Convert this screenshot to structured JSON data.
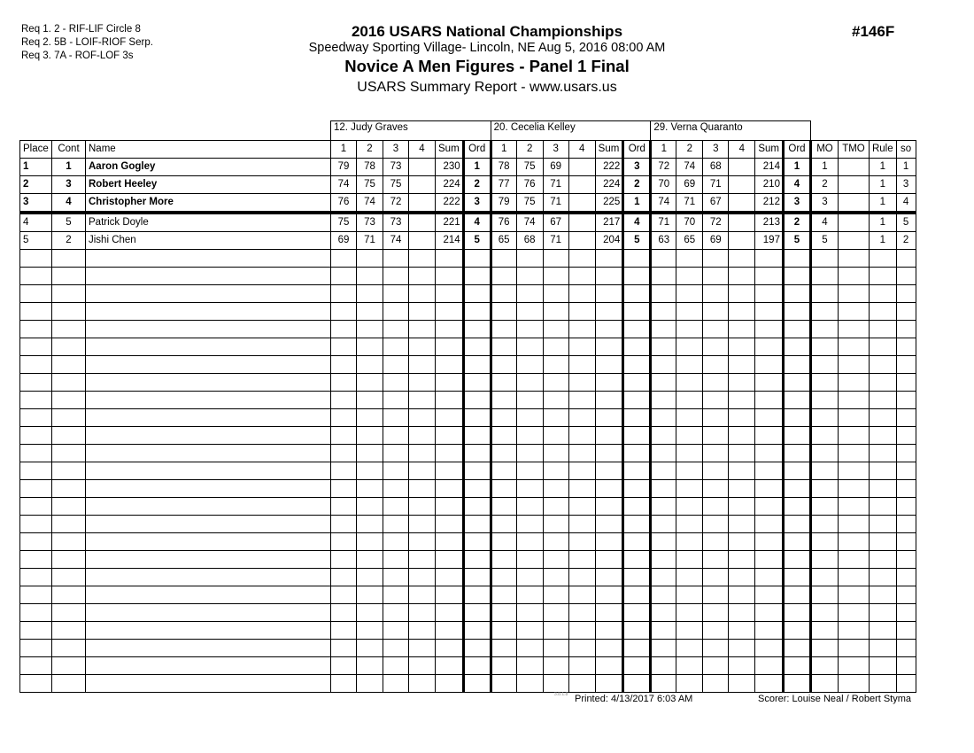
{
  "requirements": [
    "Req  1.  2 - RIF-LIF Circle 8",
    "Req  2.  5B - LOIF-RIOF Serp.",
    "Req  3.  7A - ROF-LOF 3s"
  ],
  "header": {
    "title": "2016 USARS National Championships",
    "venue": "Speedway Sporting Village- Lincoln, NE  Aug 5, 2016  08:00 AM",
    "event": "Novice A Men Figures - Panel 1 Final",
    "report": "USARS Summary Report - www.usars.us",
    "event_number": "#146F"
  },
  "judges": [
    "12.  Judy Graves",
    "20.  Cecelia Kelley",
    "29.  Verna Quaranto"
  ],
  "columns": {
    "place": "Place",
    "cont": "Cont",
    "name": "Name",
    "marks": [
      "1",
      "2",
      "3",
      "4"
    ],
    "sum": "Sum",
    "ord": "Ord",
    "mo": "MO",
    "tmo": "TMO",
    "rule": "Rule",
    "so": "so"
  },
  "rows": [
    {
      "place": "1",
      "cont": "1",
      "name": "Aaron Gogley",
      "bold": true,
      "j": [
        {
          "m": [
            "79",
            "78",
            "73",
            ""
          ],
          "sum": "230",
          "ord": "1"
        },
        {
          "m": [
            "78",
            "75",
            "69",
            ""
          ],
          "sum": "222",
          "ord": "3"
        },
        {
          "m": [
            "72",
            "74",
            "68",
            ""
          ],
          "sum": "214",
          "ord": "1"
        }
      ],
      "mo": "1",
      "tmo": "",
      "rule": "1",
      "so": "1"
    },
    {
      "place": "2",
      "cont": "3",
      "name": "Robert Heeley",
      "bold": true,
      "j": [
        {
          "m": [
            "74",
            "75",
            "75",
            ""
          ],
          "sum": "224",
          "ord": "2"
        },
        {
          "m": [
            "77",
            "76",
            "71",
            ""
          ],
          "sum": "224",
          "ord": "2"
        },
        {
          "m": [
            "70",
            "69",
            "71",
            ""
          ],
          "sum": "210",
          "ord": "4"
        }
      ],
      "mo": "2",
      "tmo": "",
      "rule": "1",
      "so": "3"
    },
    {
      "place": "3",
      "cont": "4",
      "name": "Christopher More",
      "bold": true,
      "j": [
        {
          "m": [
            "76",
            "74",
            "72",
            ""
          ],
          "sum": "222",
          "ord": "3"
        },
        {
          "m": [
            "79",
            "75",
            "71",
            ""
          ],
          "sum": "225",
          "ord": "1"
        },
        {
          "m": [
            "74",
            "71",
            "67",
            ""
          ],
          "sum": "212",
          "ord": "3"
        }
      ],
      "mo": "3",
      "tmo": "",
      "rule": "1",
      "so": "4"
    },
    {
      "place": "4",
      "cont": "5",
      "name": "Patrick Doyle",
      "bold": false,
      "j": [
        {
          "m": [
            "75",
            "73",
            "73",
            ""
          ],
          "sum": "221",
          "ord": "4"
        },
        {
          "m": [
            "76",
            "74",
            "67",
            ""
          ],
          "sum": "217",
          "ord": "4"
        },
        {
          "m": [
            "71",
            "70",
            "72",
            ""
          ],
          "sum": "213",
          "ord": "2"
        }
      ],
      "mo": "4",
      "tmo": "",
      "rule": "1",
      "so": "5"
    },
    {
      "place": "5",
      "cont": "2",
      "name": "Jishi Chen",
      "bold": false,
      "j": [
        {
          "m": [
            "69",
            "71",
            "74",
            ""
          ],
          "sum": "214",
          "ord": "5"
        },
        {
          "m": [
            "65",
            "68",
            "71",
            ""
          ],
          "sum": "204",
          "ord": "5"
        },
        {
          "m": [
            "63",
            "65",
            "69",
            ""
          ],
          "sum": "197",
          "ord": "5"
        }
      ],
      "mo": "5",
      "tmo": "",
      "rule": "1",
      "so": "2"
    }
  ],
  "footer": {
    "version": "3.8.1.8",
    "printed": "Printed:  4/13/2017  6:03 AM",
    "scorer": "Scorer:   Louise Neal / Robert Styma"
  }
}
